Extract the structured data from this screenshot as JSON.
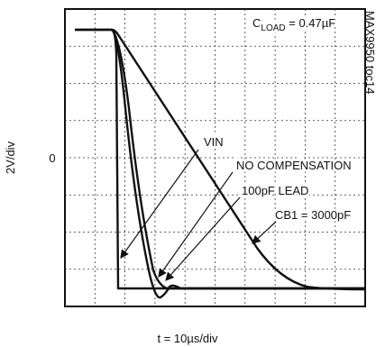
{
  "figure": {
    "side_note": "MAX9950 toc14",
    "y_label": "2V/div",
    "zero_label": "0",
    "x_label": "t = 10µs/div",
    "load": {
      "symbol": "C",
      "subscript": "LOAD",
      "rest": " = 0.47µF"
    },
    "annotations": [
      "VIN",
      "NO COMPENSATION",
      "100pF LEAD",
      "CB1 = 3000pF"
    ]
  }
}
